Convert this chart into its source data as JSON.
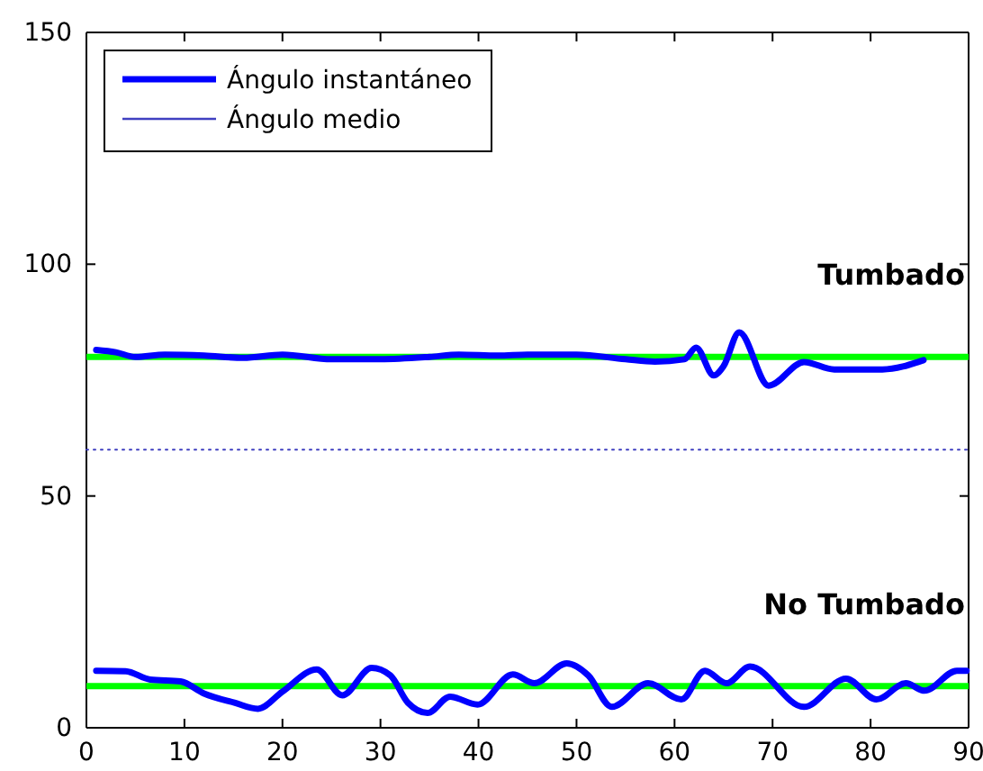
{
  "chart_data": {
    "type": "line",
    "xlim": [
      0,
      90
    ],
    "ylim": [
      0,
      150
    ],
    "xticks": [
      0,
      10,
      20,
      30,
      40,
      50,
      60,
      70,
      80,
      90
    ],
    "yticks": [
      0,
      50,
      100,
      150
    ],
    "grid": false,
    "legend": "top left",
    "series": [
      {
        "name": "Ángulo instantáneo",
        "color": "#0000ff",
        "x": [
          1,
          3,
          5,
          8,
          12,
          16,
          20,
          25,
          30,
          35,
          38,
          42,
          45,
          50,
          55,
          58,
          61,
          62.2,
          64,
          65,
          66.6,
          69.6,
          73.2,
          76.3,
          81.2,
          85.4
        ],
        "values": [
          81.5,
          81,
          80,
          80.5,
          80.3,
          79.8,
          80.5,
          79.5,
          79.5,
          80,
          80.5,
          80.3,
          80.5,
          80.5,
          79.5,
          79,
          79.5,
          82,
          76,
          78,
          85.3,
          73.8,
          78.9,
          77.3,
          77.3,
          79.3
        ]
      },
      {
        "name": "Ángulo medio",
        "color": "#4040c0",
        "line_style": "dotted",
        "x": [
          0,
          90
        ],
        "values": [
          60,
          60
        ]
      },
      {
        "color": "#0000ff",
        "x": [
          1,
          4,
          6.5,
          9.6,
          12,
          15.1,
          17.5,
          20,
          23.5,
          26.1,
          29.1,
          31,
          32.8,
          34.8,
          37.1,
          39.9,
          43.5,
          45.7,
          49,
          51.2,
          53.6,
          57.3,
          60.7,
          63.1,
          65.3,
          67.7,
          73.2,
          77.5,
          80.6,
          83.6,
          85.5,
          88.8,
          89.8
        ],
        "values": [
          12.3,
          12.2,
          10.4,
          10,
          7.4,
          5.4,
          4.1,
          7.8,
          12.6,
          7,
          12.9,
          11.3,
          5.4,
          3.2,
          6.7,
          5,
          11.5,
          9.6,
          13.9,
          11.3,
          4.5,
          9.6,
          6.1,
          12.3,
          9.6,
          13.2,
          4.5,
          10.6,
          6.1,
          9.6,
          8,
          12.3,
          12.3
        ]
      }
    ],
    "ref_lines": [
      {
        "axis": "y",
        "value": 80,
        "color": "#00ff00"
      },
      {
        "axis": "y",
        "value": 9,
        "color": "#00ff00"
      }
    ],
    "annotations": [
      "Tumbado",
      "No Tumbado"
    ]
  }
}
